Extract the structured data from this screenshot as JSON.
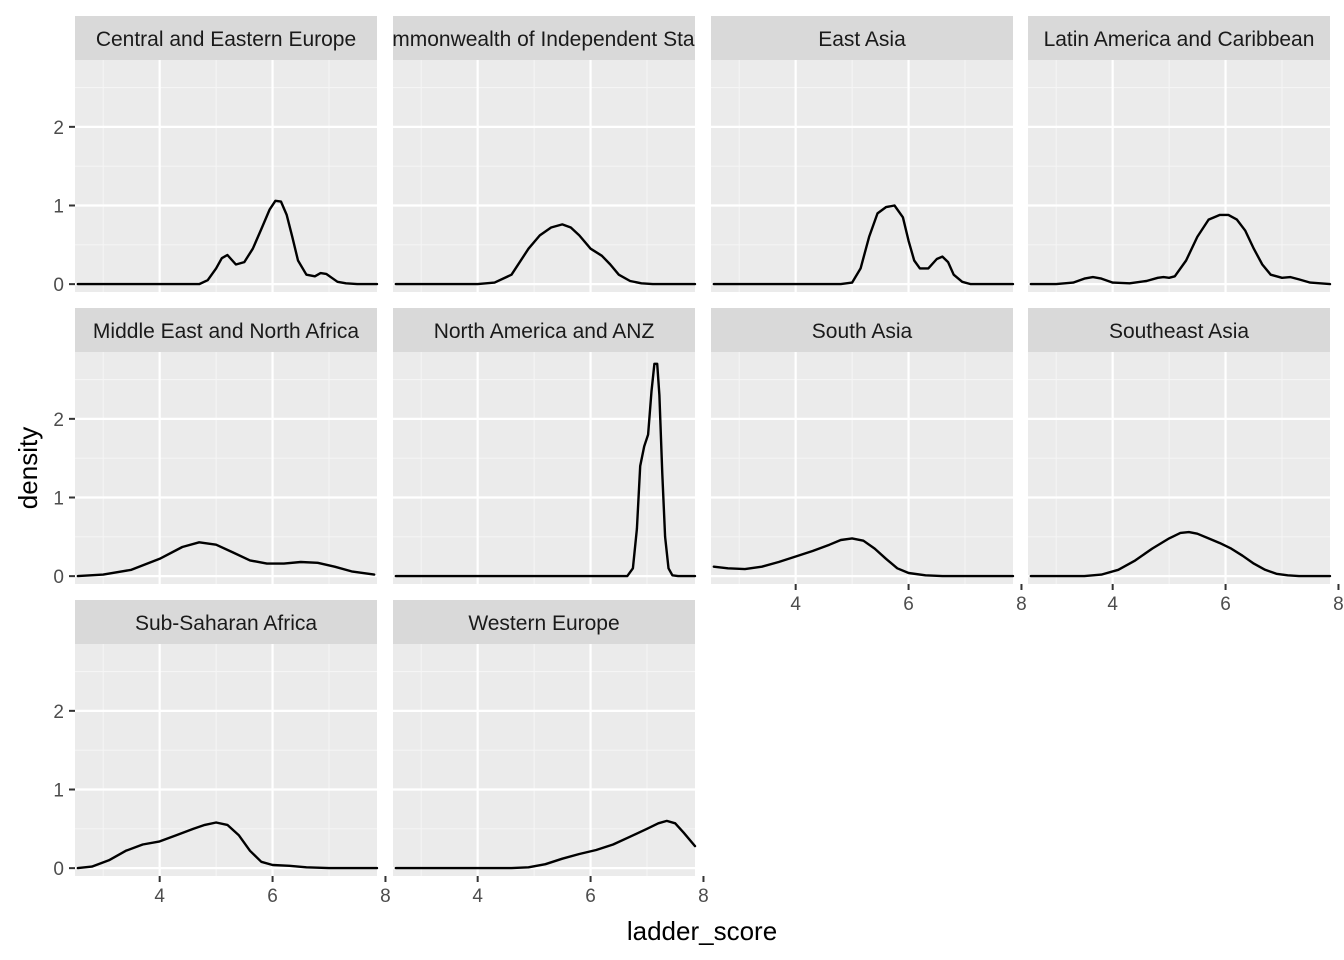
{
  "chart_data": {
    "type": "area",
    "geom": "density",
    "xlabel": "ladder_score",
    "ylabel": "density",
    "xlim": [
      2.5,
      7.85
    ],
    "ylim": [
      -0.1,
      2.85
    ],
    "x_ticks": [
      4,
      6,
      8
    ],
    "y_ticks": [
      0,
      1,
      2
    ],
    "grid": true,
    "facet_layout": {
      "ncol": 4,
      "nrow": 3
    },
    "colors": {
      "panel_background": "#ebebeb",
      "strip_background": "#d9d9d9",
      "grid_major": "#ffffff",
      "grid_minor": "#f5f5f5",
      "line": "#000000"
    },
    "facets": [
      {
        "name": "Central and Eastern Europe",
        "x": [
          2.55,
          4.7,
          4.85,
          5.0,
          5.1,
          5.2,
          5.35,
          5.5,
          5.65,
          5.8,
          5.95,
          6.05,
          6.15,
          6.25,
          6.35,
          6.45,
          6.6,
          6.75,
          6.85,
          6.95,
          7.05,
          7.15,
          7.3,
          7.5,
          7.85
        ],
        "y": [
          0,
          0,
          0.05,
          0.2,
          0.33,
          0.37,
          0.25,
          0.28,
          0.45,
          0.7,
          0.95,
          1.06,
          1.05,
          0.88,
          0.6,
          0.3,
          0.12,
          0.1,
          0.14,
          0.13,
          0.08,
          0.03,
          0.01,
          0,
          0
        ]
      },
      {
        "name": "Commonwealth of Independent States",
        "x": [
          2.55,
          4.0,
          4.3,
          4.6,
          4.9,
          5.1,
          5.3,
          5.5,
          5.65,
          5.8,
          6.0,
          6.2,
          6.35,
          6.5,
          6.7,
          6.9,
          7.1,
          7.85
        ],
        "y": [
          0,
          0,
          0.02,
          0.12,
          0.45,
          0.62,
          0.72,
          0.76,
          0.72,
          0.62,
          0.45,
          0.36,
          0.25,
          0.12,
          0.04,
          0.01,
          0,
          0
        ]
      },
      {
        "name": "East Asia",
        "x": [
          2.55,
          4.8,
          5.0,
          5.15,
          5.3,
          5.45,
          5.6,
          5.75,
          5.9,
          6.0,
          6.1,
          6.2,
          6.35,
          6.5,
          6.6,
          6.7,
          6.8,
          6.95,
          7.1,
          7.85
        ],
        "y": [
          0,
          0,
          0.02,
          0.2,
          0.6,
          0.9,
          0.98,
          1.0,
          0.85,
          0.55,
          0.3,
          0.2,
          0.2,
          0.32,
          0.35,
          0.28,
          0.12,
          0.03,
          0,
          0
        ]
      },
      {
        "name": "Latin America and Caribbean",
        "x": [
          2.55,
          3.0,
          3.3,
          3.5,
          3.65,
          3.8,
          4.0,
          4.3,
          4.6,
          4.8,
          4.9,
          5.0,
          5.1,
          5.3,
          5.5,
          5.7,
          5.9,
          6.05,
          6.2,
          6.35,
          6.5,
          6.65,
          6.8,
          7.0,
          7.15,
          7.3,
          7.5,
          7.85
        ],
        "y": [
          0,
          0,
          0.02,
          0.07,
          0.09,
          0.07,
          0.02,
          0.01,
          0.04,
          0.08,
          0.09,
          0.08,
          0.1,
          0.3,
          0.6,
          0.82,
          0.88,
          0.88,
          0.82,
          0.68,
          0.45,
          0.25,
          0.12,
          0.08,
          0.09,
          0.06,
          0.02,
          0
        ]
      },
      {
        "name": "Middle East and North Africa",
        "x": [
          2.55,
          3.0,
          3.5,
          4.0,
          4.4,
          4.7,
          5.0,
          5.3,
          5.6,
          5.9,
          6.2,
          6.5,
          6.8,
          7.1,
          7.4,
          7.8
        ],
        "y": [
          0,
          0.02,
          0.08,
          0.22,
          0.37,
          0.43,
          0.4,
          0.3,
          0.2,
          0.16,
          0.16,
          0.18,
          0.17,
          0.12,
          0.06,
          0.02
        ]
      },
      {
        "name": "North America and ANZ",
        "x": [
          2.55,
          6.65,
          6.75,
          6.82,
          6.88,
          6.95,
          7.02,
          7.08,
          7.13,
          7.18,
          7.22,
          7.27,
          7.32,
          7.38,
          7.45,
          7.55,
          7.85
        ],
        "y": [
          0,
          0,
          0.1,
          0.6,
          1.4,
          1.65,
          1.8,
          2.35,
          2.7,
          2.7,
          2.3,
          1.3,
          0.5,
          0.1,
          0.01,
          0,
          0
        ]
      },
      {
        "name": "South Asia",
        "x": [
          2.55,
          2.8,
          3.1,
          3.4,
          3.7,
          4.0,
          4.3,
          4.6,
          4.8,
          5.0,
          5.2,
          5.4,
          5.6,
          5.8,
          6.0,
          6.3,
          6.6,
          7.0,
          7.85
        ],
        "y": [
          0.12,
          0.1,
          0.09,
          0.12,
          0.18,
          0.25,
          0.32,
          0.4,
          0.46,
          0.48,
          0.45,
          0.35,
          0.22,
          0.1,
          0.04,
          0.01,
          0,
          0,
          0
        ]
      },
      {
        "name": "Southeast Asia",
        "x": [
          2.55,
          3.5,
          3.8,
          4.1,
          4.4,
          4.7,
          5.0,
          5.2,
          5.35,
          5.5,
          5.7,
          5.9,
          6.1,
          6.3,
          6.5,
          6.7,
          6.9,
          7.1,
          7.3,
          7.85
        ],
        "y": [
          0,
          0,
          0.02,
          0.08,
          0.2,
          0.35,
          0.48,
          0.55,
          0.56,
          0.54,
          0.48,
          0.42,
          0.35,
          0.26,
          0.16,
          0.08,
          0.03,
          0.01,
          0,
          0
        ]
      },
      {
        "name": "Sub-Saharan Africa",
        "x": [
          2.55,
          2.8,
          3.1,
          3.4,
          3.7,
          4.0,
          4.3,
          4.6,
          4.8,
          5.0,
          5.2,
          5.4,
          5.6,
          5.8,
          6.0,
          6.3,
          6.6,
          7.0,
          7.4,
          7.85
        ],
        "y": [
          0,
          0.02,
          0.1,
          0.22,
          0.3,
          0.34,
          0.42,
          0.5,
          0.55,
          0.58,
          0.55,
          0.42,
          0.22,
          0.08,
          0.04,
          0.03,
          0.01,
          0,
          0,
          0
        ]
      },
      {
        "name": "Western Europe",
        "x": [
          2.55,
          4.6,
          4.9,
          5.2,
          5.5,
          5.8,
          6.1,
          6.4,
          6.7,
          7.0,
          7.2,
          7.35,
          7.5,
          7.65,
          7.85
        ],
        "y": [
          0,
          0,
          0.01,
          0.05,
          0.12,
          0.18,
          0.23,
          0.3,
          0.4,
          0.5,
          0.57,
          0.6,
          0.57,
          0.45,
          0.28
        ]
      }
    ]
  }
}
